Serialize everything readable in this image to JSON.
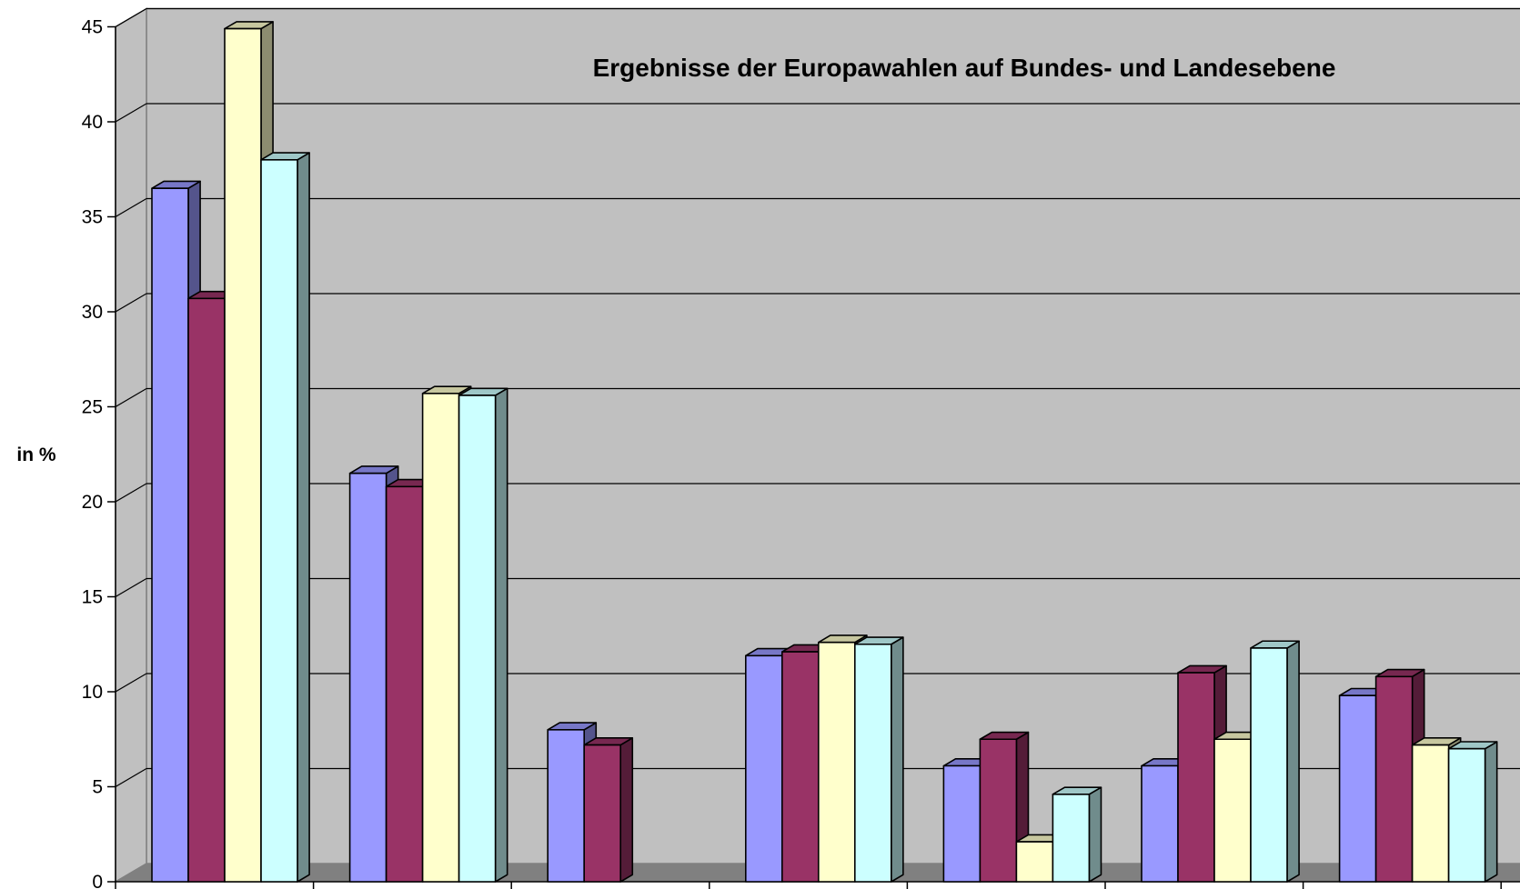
{
  "chart_data": {
    "type": "bar",
    "title": "Ergebnisse der Europawahlen auf Bundes- und Landesebene",
    "ylabel": "in %",
    "xlabel": "",
    "ylim": [
      0,
      45
    ],
    "yticks": [
      0,
      5,
      10,
      15,
      20,
      25,
      30,
      35,
      40,
      45
    ],
    "grid": true,
    "categories": [
      "",
      "",
      "",
      "",
      "",
      "",
      ""
    ],
    "series": [
      {
        "color": "#9999ff",
        "values": [
          36.5,
          21.5,
          8.0,
          11.9,
          6.1,
          6.1,
          9.8
        ]
      },
      {
        "color": "#993366",
        "values": [
          30.7,
          20.8,
          7.2,
          12.1,
          7.5,
          11.0,
          10.8
        ]
      },
      {
        "color": "#ffffcc",
        "values": [
          44.9,
          25.7,
          null,
          12.6,
          2.1,
          7.5,
          7.2
        ]
      },
      {
        "color": "#ccffff",
        "values": [
          38.0,
          25.6,
          null,
          12.5,
          4.6,
          12.3,
          7.0
        ]
      }
    ]
  }
}
